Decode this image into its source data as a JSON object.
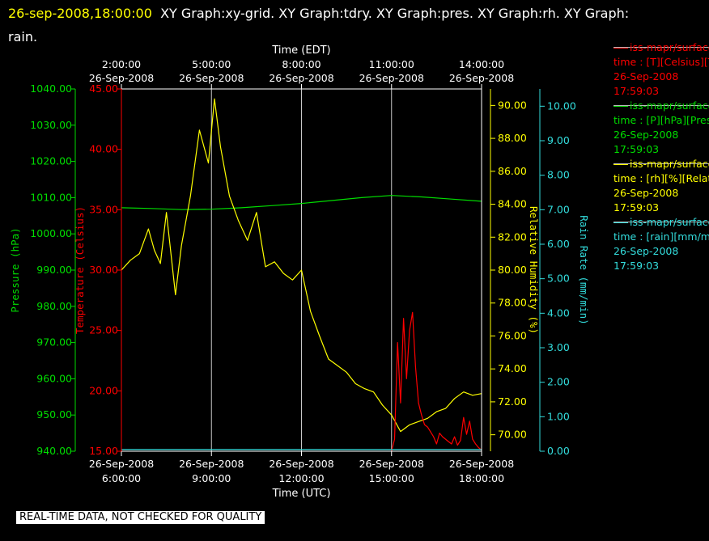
{
  "header": {
    "timestamp": "26-sep-2008,18:00:00",
    "title": "XY Graph:xy-grid.  XY Graph:tdry.  XY Graph:pres.  XY Graph:rh.  XY Graph:",
    "title_line2": "rain."
  },
  "banner": "REAL-TIME DATA, NOT CHECKED FOR QUALITY",
  "colors": {
    "temperature": "#ff0000",
    "pressure": "#00dd00",
    "humidity": "#ffff00",
    "rain": "#33dddd",
    "grid": "#c8c8c8",
    "background": "#000000"
  },
  "legend": [
    {
      "line1": "iss-mapr/surface",
      "line2": "time : [T][Celsius][T",
      "line3": "26-Sep-2008",
      "line4": "17:59:03",
      "color": "#ff0000"
    },
    {
      "line1": "iss-mapr/surface",
      "line2": "time : [P][hPa][Pres",
      "line3": "26-Sep-2008",
      "line4": "17:59:03",
      "color": "#00dd00"
    },
    {
      "line1": "iss-mapr/surface",
      "line2": "time : [rh][%][Relati",
      "line3": "26-Sep-2008",
      "line4": "17:59:03",
      "color": "#ffff00"
    },
    {
      "line1": "iss-mapr/surface",
      "line2": "time : [rain][mm/min",
      "line3": "26-Sep-2008",
      "line4": "17:59:03",
      "color": "#33dddd"
    }
  ],
  "chart_data": {
    "type": "line",
    "top_axis": {
      "label": "Time (EDT)",
      "ticks": [
        {
          "time": "2:00:00",
          "date": "26-Sep-2008"
        },
        {
          "time": "5:00:00",
          "date": "26-Sep-2008"
        },
        {
          "time": "8:00:00",
          "date": "26-Sep-2008"
        },
        {
          "time": "11:00:00",
          "date": "26-Sep-2008"
        },
        {
          "time": "14:00:00",
          "date": "26-Sep-2008"
        }
      ]
    },
    "bottom_axis": {
      "label": "Time (UTC)",
      "ticks": [
        {
          "time": "6:00:00",
          "date": "26-Sep-2008",
          "hour": 6
        },
        {
          "time": "9:00:00",
          "date": "26-Sep-2008",
          "hour": 9
        },
        {
          "time": "12:00:00",
          "date": "26-Sep-2008",
          "hour": 12
        },
        {
          "time": "15:00:00",
          "date": "26-Sep-2008",
          "hour": 15
        },
        {
          "time": "18:00:00",
          "date": "26-Sep-2008",
          "hour": 18
        }
      ],
      "xlim": [
        6,
        18
      ]
    },
    "grid": true,
    "axes": {
      "pressure": {
        "label": "Pressure (hPa)",
        "ylim": [
          940,
          1040
        ],
        "ticks": [
          "940.00",
          "950.00",
          "960.00",
          "970.00",
          "980.00",
          "990.00",
          "1000.00",
          "1010.00",
          "1020.00",
          "1030.00",
          "1040.00"
        ]
      },
      "temperature": {
        "label": "Temperature (Celsius)",
        "ylim": [
          15,
          45
        ],
        "ticks": [
          "15.00",
          "20.00",
          "25.00",
          "30.00",
          "35.00",
          "40.00",
          "45.00"
        ]
      },
      "humidity": {
        "label": "Relative Humidity (%)",
        "ylim": [
          69,
          91
        ],
        "ticks": [
          "70.00",
          "72.00",
          "74.00",
          "76.00",
          "78.00",
          "80.00",
          "82.00",
          "84.00",
          "86.00",
          "88.00",
          "90.00"
        ]
      },
      "rain": {
        "label": "Rain Rate (mm/min)",
        "ylim": [
          0,
          10.5
        ],
        "ticks": [
          "0.00",
          "1.00",
          "2.00",
          "3.00",
          "4.00",
          "5.00",
          "6.00",
          "7.00",
          "8.00",
          "9.00",
          "10.00"
        ]
      }
    },
    "series": [
      {
        "name": "pressure",
        "axis": "pressure",
        "x": [
          6.0,
          7.0,
          8.0,
          9.0,
          10.0,
          11.0,
          12.0,
          13.0,
          14.0,
          15.0,
          16.0,
          17.0,
          18.0
        ],
        "y": [
          1007.2,
          1007.0,
          1006.7,
          1006.8,
          1007.2,
          1007.8,
          1008.4,
          1009.2,
          1010.0,
          1010.6,
          1010.2,
          1009.6,
          1009.0
        ]
      },
      {
        "name": "humidity",
        "axis": "humidity",
        "x": [
          6.0,
          6.3,
          6.6,
          6.9,
          7.1,
          7.3,
          7.5,
          7.8,
          8.0,
          8.3,
          8.6,
          8.9,
          9.1,
          9.3,
          9.6,
          9.9,
          10.2,
          10.5,
          10.8,
          11.1,
          11.4,
          11.7,
          12.0,
          12.3,
          12.6,
          12.9,
          13.2,
          13.5,
          13.8,
          14.1,
          14.4,
          14.7,
          15.0,
          15.3,
          15.6,
          15.9,
          16.2,
          16.5,
          16.8,
          17.1,
          17.4,
          17.7,
          18.0
        ],
        "y": [
          80.0,
          80.6,
          81.0,
          82.5,
          81.2,
          80.4,
          83.5,
          78.5,
          81.5,
          84.5,
          88.5,
          86.5,
          90.4,
          87.5,
          84.5,
          83.0,
          81.8,
          83.5,
          80.2,
          80.5,
          79.8,
          79.4,
          80.0,
          77.5,
          76.0,
          74.6,
          74.2,
          73.8,
          73.1,
          72.8,
          72.6,
          71.8,
          71.2,
          70.2,
          70.6,
          70.8,
          71.0,
          71.4,
          71.6,
          72.2,
          72.6,
          72.4,
          72.5
        ]
      },
      {
        "name": "temperature",
        "axis": "temperature",
        "x": [
          15.0,
          15.1,
          15.2,
          15.3,
          15.4,
          15.5,
          15.6,
          15.7,
          15.8,
          15.9,
          16.0,
          16.1,
          16.2,
          16.3,
          16.4,
          16.5,
          16.6,
          16.7,
          16.8,
          16.9,
          17.0,
          17.1,
          17.2,
          17.3,
          17.4,
          17.5,
          17.6,
          17.7,
          17.8,
          17.9,
          18.0
        ],
        "y": [
          15.0,
          16.0,
          24.0,
          19.0,
          26.0,
          21.0,
          25.0,
          26.5,
          22.0,
          19.0,
          18.0,
          17.2,
          17.0,
          16.6,
          16.2,
          15.6,
          16.5,
          16.2,
          16.0,
          15.8,
          15.6,
          16.2,
          15.5,
          15.9,
          17.8,
          16.4,
          17.5,
          16.0,
          15.6,
          15.3,
          15.1
        ]
      },
      {
        "name": "rain",
        "axis": "rain",
        "x": [
          6.0,
          18.0
        ],
        "y": [
          0.05,
          0.05
        ]
      }
    ]
  }
}
